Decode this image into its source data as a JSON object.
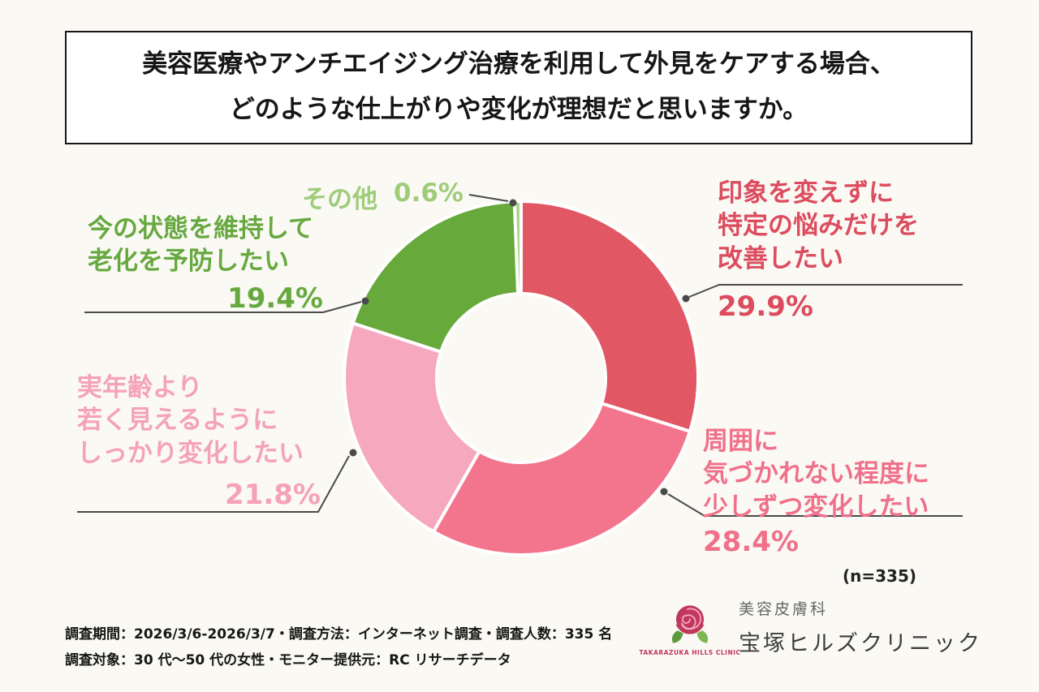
{
  "title": {
    "line1": "美容医療やアンチエイジング治療を利用して外見をケアする場合、",
    "line2": "どのような仕上がりや変化が理想だと思いますか。"
  },
  "chart_data": {
    "type": "pie",
    "subtype": "donut",
    "start_angle_deg": 0,
    "direction": "clockwise",
    "n_label": "(n=335)",
    "segments": [
      {
        "label": "印象を変えずに特定の悩みだけを改善したい",
        "value": 29.9,
        "color": "#E25764",
        "label_color": "#DC4C5E"
      },
      {
        "label": "周囲に気づかれない程度に少しずつ変化したい",
        "value": 28.4,
        "color": "#F3758D",
        "label_color": "#F0708A"
      },
      {
        "label": "実年齢より若く見えるようにしっかり変化したい",
        "value": 21.8,
        "color": "#F6A8BE",
        "label_color": "#F5A2B9"
      },
      {
        "label": "今の状態を維持して老化を予防したい",
        "value": 19.4,
        "color": "#68A93C",
        "label_color": "#67A940"
      },
      {
        "label": "その他",
        "value": 0.6,
        "color": "#ABD28B",
        "label_color": "#9FCC7B"
      }
    ]
  },
  "callouts": {
    "impression": {
      "line1": "印象を変えずに",
      "line2": "特定の悩みだけを",
      "line3": "改善したい",
      "pct": "29.9%"
    },
    "gradual": {
      "line1": "周囲に",
      "line2": "気づかれない程度に",
      "line3": "少しずつ変化したい",
      "pct": "28.4%"
    },
    "younger": {
      "line1": "実年齢より",
      "line2": "若く見えるように",
      "line3": "しっかり変化したい",
      "pct": "21.8%"
    },
    "maintain": {
      "line1": "今の状態を維持して",
      "line2": "老化を予防したい",
      "pct": "19.4%"
    },
    "other": {
      "name": "その他",
      "pct": "0.6%"
    }
  },
  "footer": {
    "line1": "調査期間：2026/3/6-2026/3/7・調査方法：インターネット調査・調査人数：335 名",
    "line2": "調査対象：30 代～50 代の女性・モニター提供元：RC リサーチデータ"
  },
  "logo": {
    "subtitle": "美容皮膚科",
    "name": "宝塚ヒルズクリニック",
    "english": "TAKARAZUKA HILLS CLINIC"
  }
}
